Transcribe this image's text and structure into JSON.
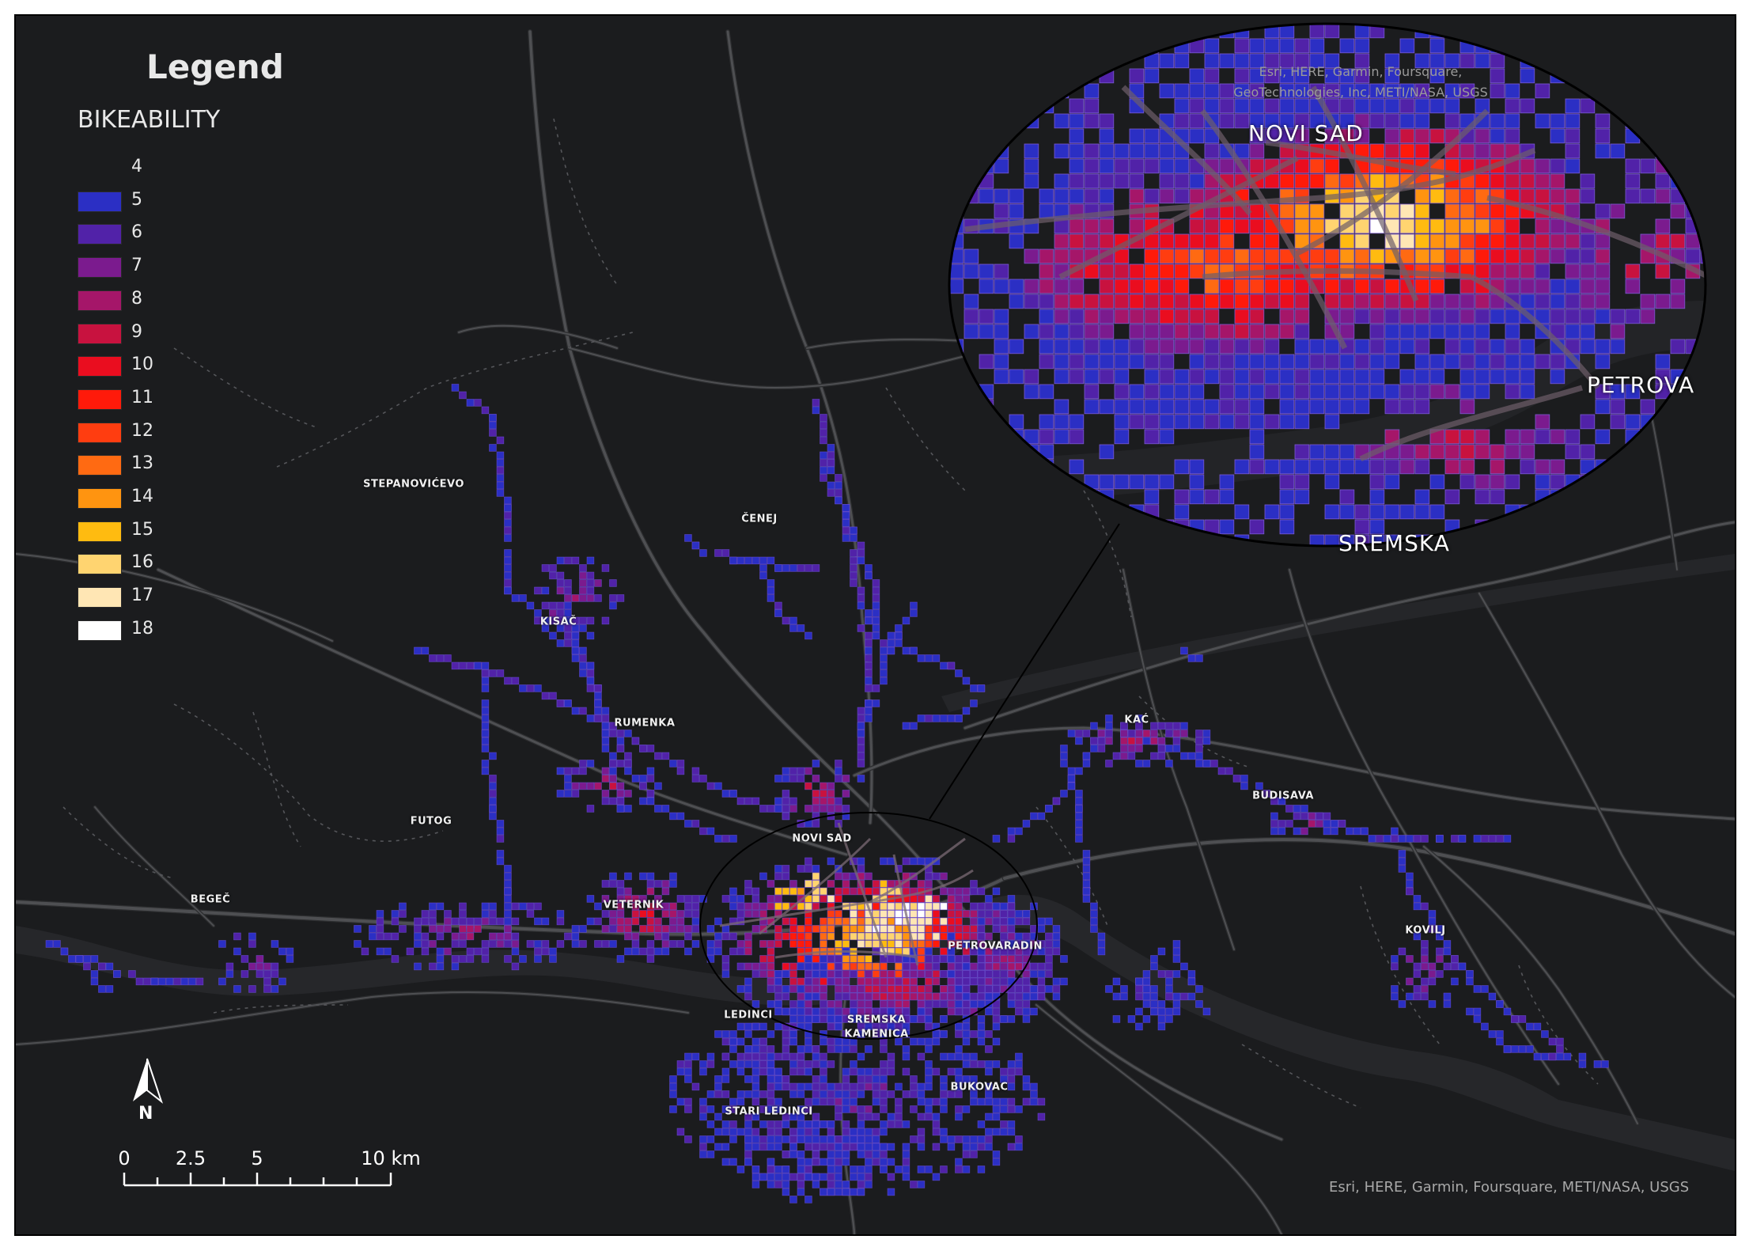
{
  "legend": {
    "title": "Legend",
    "field": "BIKEABILITY",
    "classes": [
      {
        "value": "4",
        "color": null
      },
      {
        "value": "5",
        "color": "#2b2fc4"
      },
      {
        "value": "6",
        "color": "#5122a8"
      },
      {
        "value": "7",
        "color": "#7b1b8e"
      },
      {
        "value": "8",
        "color": "#a51669"
      },
      {
        "value": "9",
        "color": "#c8123f"
      },
      {
        "value": "10",
        "color": "#ea0d1f"
      },
      {
        "value": "11",
        "color": "#ff1a0a"
      },
      {
        "value": "12",
        "color": "#ff3d10"
      },
      {
        "value": "13",
        "color": "#ff6a12"
      },
      {
        "value": "14",
        "color": "#ff9410"
      },
      {
        "value": "15",
        "color": "#ffbb10"
      },
      {
        "value": "16",
        "color": "#ffd470"
      },
      {
        "value": "17",
        "color": "#ffe6b4"
      },
      {
        "value": "18",
        "color": "#ffffff"
      }
    ]
  },
  "places": {
    "stepanovicevo": "STEPANOVIĆEVO",
    "cenej": "ČENEJ",
    "kisac": "KISAČ",
    "rumenka": "RUMENKA",
    "kac": "KAĆ",
    "futog": "FUTOG",
    "budisava": "BUDISAVA",
    "novi_sad": "NOVI SAD",
    "begec": "BEGEČ",
    "veternik": "VETERNIK",
    "kovilj": "KOVILJ",
    "petrovaradin": "PETROVARADIN",
    "ledinci": "LEDINCI",
    "sremska_kamenica_1": "SREMSKA",
    "sremska_kamenica_2": "KAMENICA",
    "bukovac": "BUKOVAC",
    "stari_ledinci": "STARI LEDINCI"
  },
  "inset": {
    "novi_sad": "NOVI SAD",
    "petrov": "PETROVA",
    "sremska": "SREMSKA",
    "attribution_line1": "Esri, HERE, Garmin, Foursquare,",
    "attribution_line2": "GeoTechnologies, Inc, METI/NASA, USGS"
  },
  "map_attribution": "Esri, HERE, Garmin, Foursquare, METI/NASA, USGS",
  "north_arrow": {
    "label": "N",
    "icon": "north-arrow-icon"
  },
  "scale_bar": {
    "labels": [
      "0",
      "2.5",
      "5",
      "10 km"
    ]
  },
  "colors": {
    "basemap": "#1b1c1e",
    "road": "#4a4b4e",
    "road_casing": "#2e2f31",
    "water": "#26272a",
    "cell_border": "#7a5bd0"
  }
}
